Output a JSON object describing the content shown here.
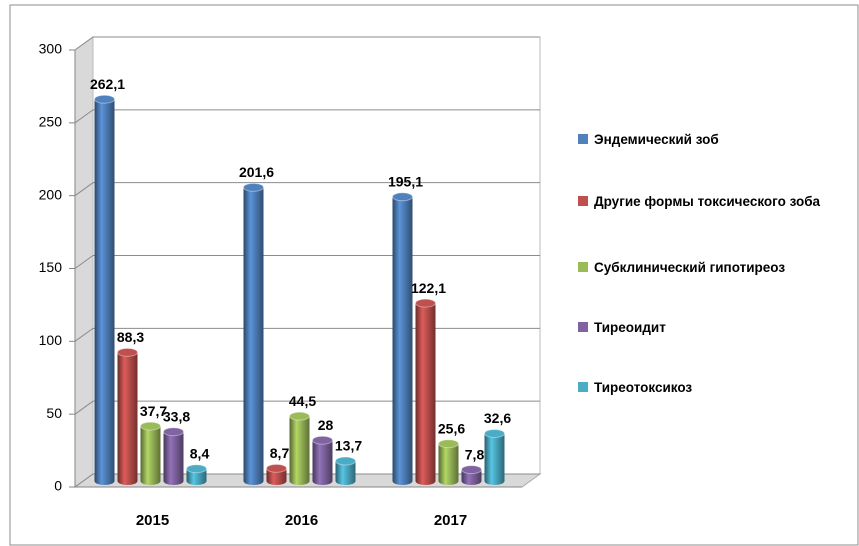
{
  "chart_data": {
    "type": "bar3d",
    "categories": [
      "2015",
      "2016",
      "2017"
    ],
    "series": [
      {
        "name": "Эндемический  зоб",
        "color": "#4f81bd",
        "values": [
          262.1,
          201.6,
          195.1
        ],
        "value_labels": [
          "262,1",
          "201,6",
          "195,1"
        ]
      },
      {
        "name": "Другие формы  токсического зоба",
        "color": "#c0504d",
        "values": [
          88.3,
          8.7,
          122.1
        ],
        "value_labels": [
          "88,3",
          "8,7",
          "122,1"
        ]
      },
      {
        "name": "Субклинический  гипотиреоз",
        "color": "#9bbb59",
        "values": [
          37.7,
          44.5,
          25.6
        ],
        "value_labels": [
          "37,7",
          "44,5",
          "25,6"
        ]
      },
      {
        "name": "Тиреоидит",
        "color": "#8064a2",
        "values": [
          33.8,
          28,
          7.8
        ],
        "value_labels": [
          "33,8",
          "28",
          "7,8"
        ]
      },
      {
        "name": "Тиреотоксикоз",
        "color": "#4bacc6",
        "values": [
          8.4,
          13.7,
          32.6
        ],
        "value_labels": [
          "8,4",
          "13,7",
          "32,6"
        ]
      }
    ],
    "ylim": [
      0,
      300
    ],
    "yticks": [
      0,
      50,
      100,
      150,
      200,
      250,
      300
    ],
    "grid": true,
    "legend": "right"
  }
}
